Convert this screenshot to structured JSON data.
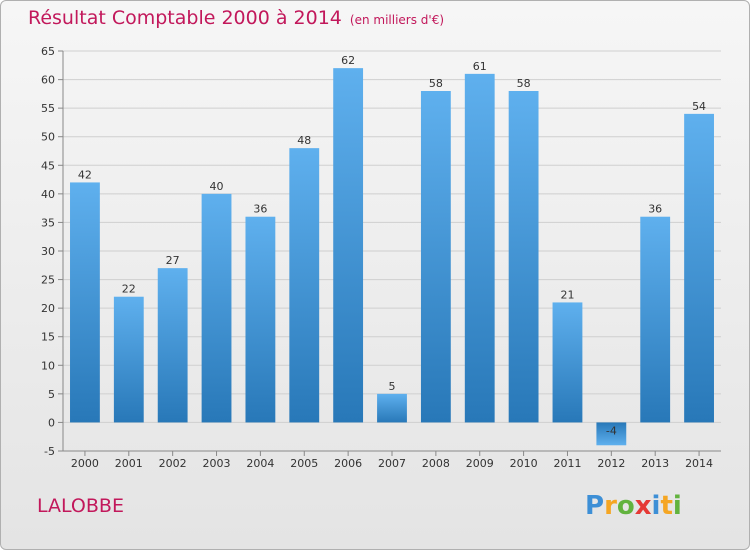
{
  "title": "Résultat Comptable 2000 à 2014",
  "subtitle": "(en milliers d'€)",
  "commune": "LALOBBE",
  "logo": {
    "text": "Proxiti",
    "colors": [
      "#3d8fd6",
      "#f5a623",
      "#62b33e",
      "#e53935",
      "#3d8fd6",
      "#f5a623",
      "#62b33e"
    ]
  },
  "chart_data": {
    "type": "bar",
    "categories": [
      "2000",
      "2001",
      "2002",
      "2003",
      "2004",
      "2005",
      "2006",
      "2007",
      "2008",
      "2009",
      "2010",
      "2011",
      "2012",
      "2013",
      "2014"
    ],
    "values": [
      42,
      22,
      27,
      40,
      36,
      48,
      62,
      5,
      58,
      61,
      58,
      21,
      -4,
      36,
      54
    ],
    "ylim": [
      -5,
      65
    ],
    "yticks": [
      -5,
      0,
      5,
      10,
      15,
      20,
      25,
      30,
      35,
      40,
      45,
      50,
      55,
      60,
      65
    ],
    "grid": true,
    "bar_color": "#3d8fd6",
    "xlabel": "",
    "ylabel": ""
  }
}
